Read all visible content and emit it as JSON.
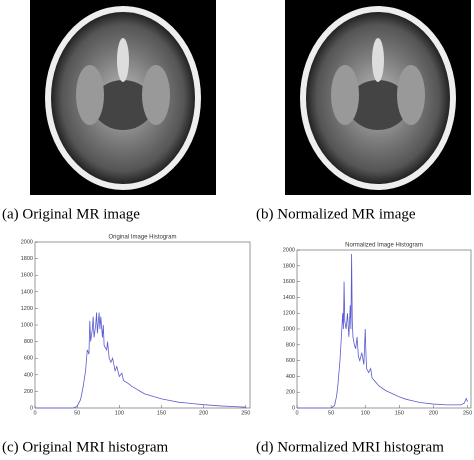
{
  "images": [
    {
      "caption": "(a) Original MR image"
    },
    {
      "caption": "(b) Normalized MR image"
    }
  ],
  "chart_data": [
    {
      "type": "line",
      "title": "Original Image Histogram",
      "caption": "(c) Original MRI histogram",
      "x": [
        0,
        45,
        50,
        54,
        57,
        60,
        62,
        64,
        65,
        66,
        68,
        69,
        70,
        72,
        73,
        74,
        76,
        77,
        78,
        80,
        81,
        82,
        85,
        86,
        88,
        90,
        92,
        95,
        97,
        100,
        103,
        105,
        110,
        115,
        120,
        125,
        130,
        140,
        150,
        160,
        170,
        180,
        190,
        200,
        220,
        240,
        250
      ],
      "values": [
        0,
        0,
        20,
        100,
        250,
        450,
        700,
        650,
        1050,
        800,
        950,
        1100,
        850,
        1000,
        1150,
        900,
        1150,
        950,
        1100,
        850,
        1000,
        750,
        700,
        800,
        600,
        550,
        600,
        450,
        500,
        380,
        420,
        330,
        300,
        260,
        230,
        200,
        170,
        140,
        110,
        90,
        70,
        60,
        50,
        40,
        25,
        15,
        10
      ],
      "color": "#5a5ad2",
      "xlim": [
        0,
        255
      ],
      "ylim": [
        0,
        2000
      ],
      "xticks": [
        0,
        50,
        100,
        150,
        200,
        250
      ],
      "yticks": [
        0,
        200,
        400,
        600,
        800,
        1000,
        1200,
        1400,
        1600,
        1800,
        2000
      ]
    },
    {
      "type": "line",
      "title": "Normalized Image Histogram",
      "caption": "(d) Normalized MRI histogram",
      "x": [
        0,
        50,
        55,
        58,
        60,
        63,
        65,
        67,
        68,
        69,
        70,
        72,
        74,
        76,
        78,
        79,
        80,
        81,
        82,
        84,
        86,
        88,
        90,
        92,
        95,
        98,
        100,
        101,
        102,
        105,
        108,
        110,
        115,
        120,
        130,
        140,
        150,
        160,
        170,
        180,
        200,
        220,
        240,
        245,
        248,
        250
      ],
      "values": [
        0,
        0,
        30,
        150,
        300,
        600,
        900,
        1200,
        1000,
        1600,
        1100,
        1000,
        1200,
        900,
        1300,
        1000,
        1950,
        1100,
        900,
        800,
        750,
        900,
        650,
        600,
        700,
        550,
        1000,
        700,
        500,
        450,
        500,
        380,
        330,
        280,
        220,
        180,
        140,
        110,
        90,
        70,
        50,
        40,
        40,
        60,
        120,
        80
      ],
      "color": "#5a5ad2",
      "xlim": [
        0,
        255
      ],
      "ylim": [
        0,
        2000
      ],
      "xticks": [
        0,
        50,
        100,
        150,
        200,
        250
      ],
      "yticks": [
        0,
        200,
        400,
        600,
        800,
        1000,
        1200,
        1400,
        1600,
        1800,
        2000
      ]
    }
  ]
}
